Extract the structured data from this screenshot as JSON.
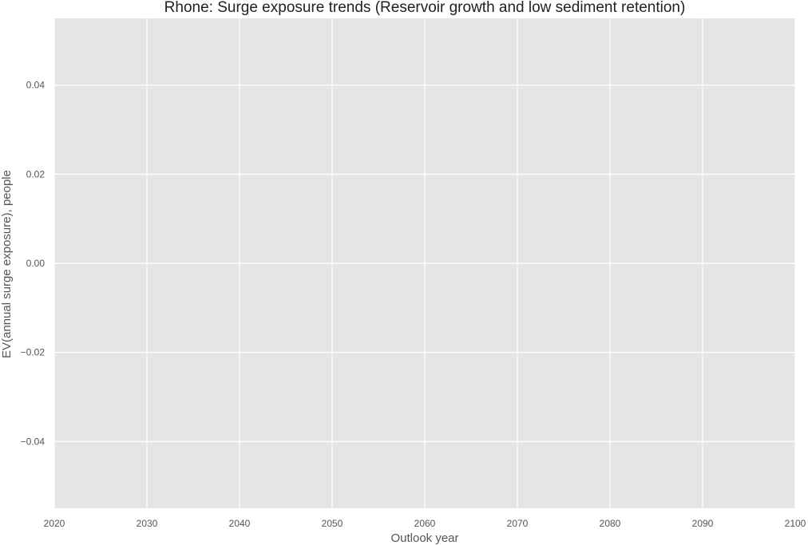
{
  "chart_data": {
    "type": "line",
    "title": "Rhone: Surge exposure trends (Reservoir growth and low sediment retention)",
    "xlabel": "Outlook year",
    "ylabel": "EV(annual surge exposure), people",
    "xlim": [
      2020,
      2100
    ],
    "ylim": [
      -0.055,
      0.055
    ],
    "x_ticks": [
      2020,
      2030,
      2040,
      2050,
      2060,
      2070,
      2080,
      2090,
      2100
    ],
    "x_tick_labels": [
      "2020",
      "2030",
      "2040",
      "2050",
      "2060",
      "2070",
      "2080",
      "2090",
      "2100"
    ],
    "y_ticks": [
      0.04,
      0.02,
      0.0,
      -0.02,
      -0.04
    ],
    "y_tick_labels": [
      "0.04",
      "0.02",
      "0.00",
      "−0.02",
      "−0.04"
    ],
    "grid": true,
    "series": [],
    "colors": {
      "plot_background": "#e5e5e5",
      "grid": "#ffffff",
      "text": "#555555",
      "title": "#222222"
    }
  }
}
